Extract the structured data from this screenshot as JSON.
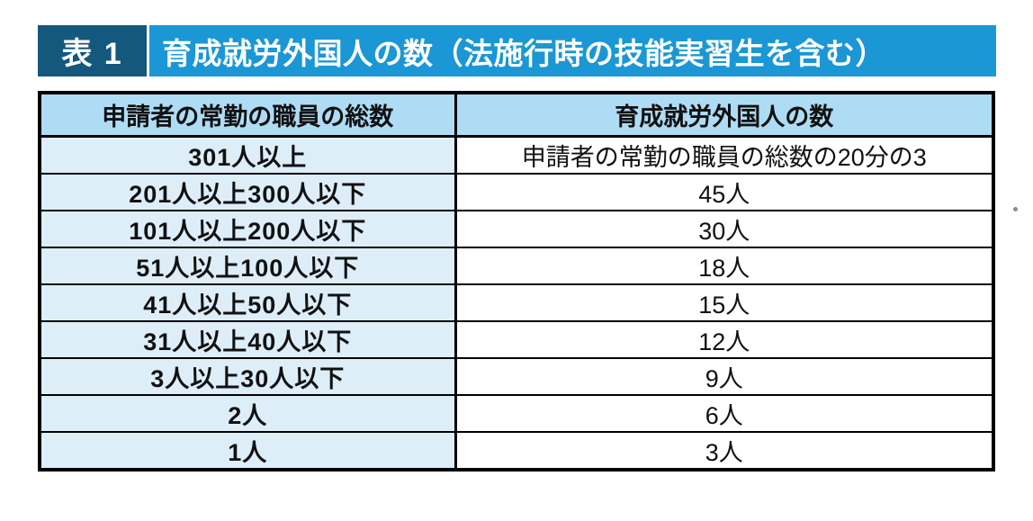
{
  "title": {
    "tag": "表 1",
    "text": "育成就労外国人の数（法施行時の技能実習生を含む）"
  },
  "table": {
    "headers": [
      "申請者の常勤の職員の総数",
      "育成就労外国人の数"
    ],
    "rows": [
      [
        "301人以上",
        "申請者の常勤の職員の総数の20分の3"
      ],
      [
        "201人以上300人以下",
        "45人"
      ],
      [
        "101人以上200人以下",
        "30人"
      ],
      [
        "51人以上100人以下",
        "18人"
      ],
      [
        "41人以上50人以下",
        "15人"
      ],
      [
        "31人以上40人以下",
        "12人"
      ],
      [
        "3人以上30人以下",
        "9人"
      ],
      [
        "2人",
        "6人"
      ],
      [
        "1人",
        "3人"
      ]
    ]
  },
  "colors": {
    "tag_bg": "#14587d",
    "title_bg": "#1a97d4",
    "header_bg": "#aedcf5",
    "left_column_bg": "#ddeef9",
    "border": "#000000",
    "title_text": "#ffffff",
    "body_text": "#111111"
  }
}
